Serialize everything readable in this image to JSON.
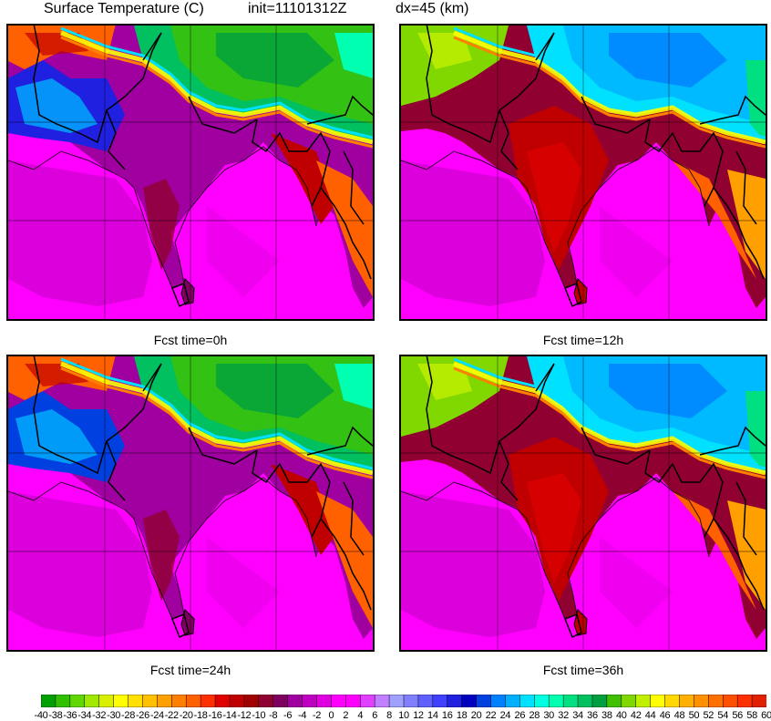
{
  "header": {
    "variable": "Surface Temperature (C)",
    "init": "init=11101312Z",
    "dx": "dx=45 (km)"
  },
  "panels": [
    {
      "title": "Fcst time=0h",
      "fcst_hours": 0
    },
    {
      "title": "Fcst time=12h",
      "fcst_hours": 12
    },
    {
      "title": "Fcst time=24h",
      "fcst_hours": 24
    },
    {
      "title": "Fcst time=36h",
      "fcst_hours": 36
    }
  ],
  "colorbar": {
    "labels": [
      "-40",
      "-38",
      "-36",
      "-34",
      "-32",
      "-30",
      "-28",
      "-26",
      "-24",
      "-22",
      "-20",
      "-18",
      "-16",
      "-14",
      "-12",
      "-10",
      "-8",
      "-6",
      "-4",
      "-2",
      "0",
      "2",
      "4",
      "6",
      "8",
      "10",
      "12",
      "14",
      "16",
      "18",
      "20",
      "22",
      "24",
      "26",
      "28",
      "30",
      "32",
      "34",
      "36",
      "38",
      "40",
      "42",
      "44",
      "46",
      "48",
      "50",
      "52",
      "54",
      "56",
      "58",
      "60"
    ],
    "colors": [
      "#00a000",
      "#30c000",
      "#60d800",
      "#a0e800",
      "#d8f000",
      "#ffff00",
      "#ffe000",
      "#ffc000",
      "#ffa000",
      "#ff8000",
      "#ff6000",
      "#ff3000",
      "#e00000",
      "#c00000",
      "#a00000",
      "#900030",
      "#800060",
      "#a000a0",
      "#c000c0",
      "#e000e0",
      "#ff00ff",
      "#ff00ff",
      "#e040ff",
      "#c080ff",
      "#a0a0ff",
      "#8080ff",
      "#6060ff",
      "#4040ff",
      "#2020e0",
      "#0000c0",
      "#0040e0",
      "#0080ff",
      "#00b0ff",
      "#00e0ff",
      "#00ffe0",
      "#00ffb0",
      "#00e080",
      "#00c060",
      "#00a040",
      "#40c000",
      "#80d800",
      "#c0f000",
      "#ffff00",
      "#ffd800",
      "#ffb000",
      "#ff9000",
      "#ff7000",
      "#ff5000",
      "#ff3000",
      "#e02000"
    ]
  }
}
